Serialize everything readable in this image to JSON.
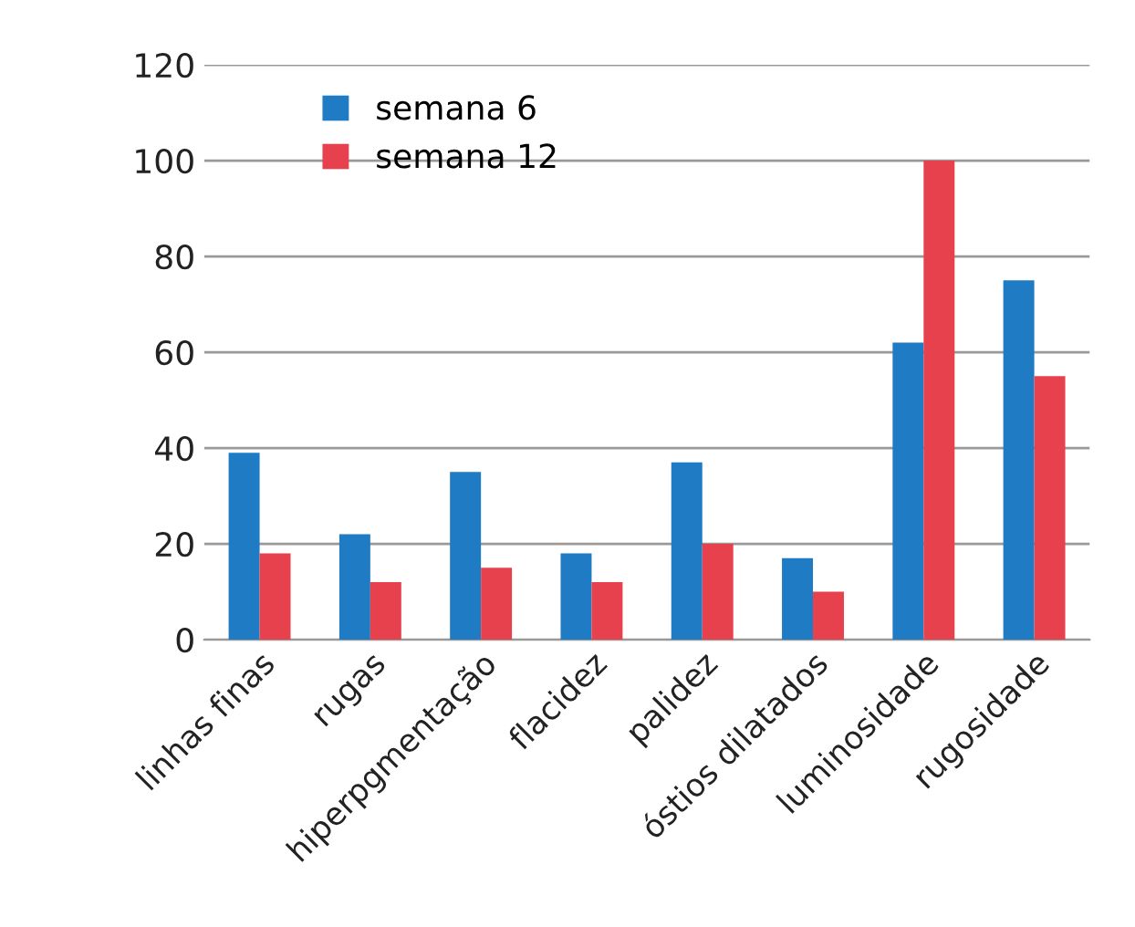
{
  "chart_data": {
    "type": "bar",
    "categories": [
      "linhas finas",
      "rugas",
      "hiperpgmentação",
      "flacidez",
      "palidez",
      "óstios dilatados",
      "luminosidade",
      "rugosidade"
    ],
    "series": [
      {
        "name": "semana 6",
        "color": "#1f7bc4",
        "values": [
          39,
          22,
          35,
          18,
          37,
          17,
          62,
          75
        ]
      },
      {
        "name": "semana 12",
        "color": "#e8414e",
        "values": [
          18,
          12,
          15,
          12,
          20,
          10,
          100,
          55
        ]
      }
    ],
    "ylim": [
      0,
      120
    ],
    "yticks": [
      0,
      20,
      40,
      60,
      80,
      100,
      120
    ],
    "grid": "y",
    "legend": "top left"
  }
}
